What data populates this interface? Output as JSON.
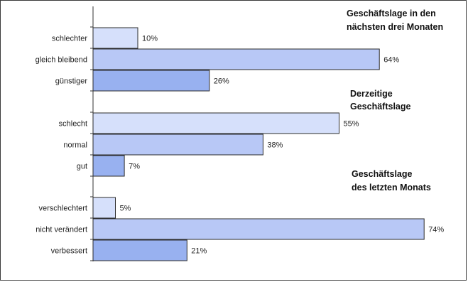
{
  "chart_data": {
    "type": "bar",
    "orientation": "horizontal",
    "value_unit": "%",
    "xlim": [
      0,
      100
    ],
    "grid": false,
    "groups": [
      {
        "title_lines": [
          "Geschäftslage in den",
          "nächsten drei Monaten"
        ],
        "bars": [
          {
            "category": "schlechter",
            "value": 10,
            "label": "10%",
            "color": "#d6e0fb"
          },
          {
            "category": "gleich bleibend",
            "value": 64,
            "label": "64%",
            "color": "#b8c8f6"
          },
          {
            "category": "günstiger",
            "value": 26,
            "label": "26%",
            "color": "#98b1f0"
          }
        ]
      },
      {
        "title_lines": [
          "Derzeitige",
          "Geschäftslage"
        ],
        "bars": [
          {
            "category": "schlecht",
            "value": 55,
            "label": "55%",
            "color": "#d6e0fb"
          },
          {
            "category": "normal",
            "value": 38,
            "label": "38%",
            "color": "#b8c8f6"
          },
          {
            "category": "gut",
            "value": 7,
            "label": "7%",
            "color": "#98b1f0"
          }
        ]
      },
      {
        "title_lines": [
          "Geschäftslage",
          "des letzten Monats"
        ],
        "bars": [
          {
            "category": "verschlechtert",
            "value": 5,
            "label": "5%",
            "color": "#d6e0fb"
          },
          {
            "category": "nicht verändert",
            "value": 74,
            "label": "74%",
            "color": "#b8c8f6"
          },
          {
            "category": "verbessert",
            "value": 21,
            "label": "21%",
            "color": "#98b1f0"
          }
        ]
      }
    ]
  }
}
